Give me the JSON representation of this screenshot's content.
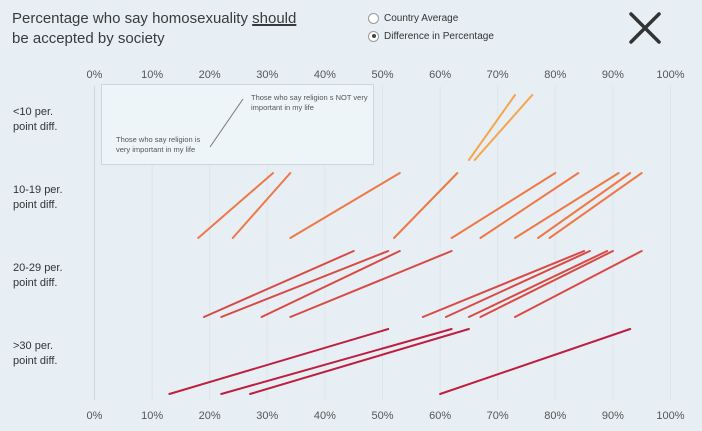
{
  "header": {
    "title_pre": "Percentage who say homosexuality ",
    "title_emph": "should",
    "title_post": " be accepted by society",
    "radio_options": [
      {
        "label": "Country Average",
        "selected": false
      },
      {
        "label": "Difference in Percentage",
        "selected": true
      }
    ],
    "close_icon": "close-x-icon"
  },
  "legend": {
    "low_label": "Those who say religion is very important in my life",
    "high_label": "Those who say religion s NOT very important in my life"
  },
  "chart_data": {
    "type": "slope-segments",
    "xlim": [
      0,
      100
    ],
    "x_ticks": [
      "0%",
      "10%",
      "20%",
      "30%",
      "40%",
      "50%",
      "60%",
      "70%",
      "80%",
      "90%",
      "100%"
    ],
    "grid": true,
    "rows": [
      {
        "label": "<10 per. point diff.",
        "color": "#f5a54b",
        "segments": [
          [
            65,
            73
          ],
          [
            66,
            76
          ]
        ]
      },
      {
        "label": "10-19 per. point diff.",
        "color": "#ee7846",
        "segments": [
          [
            18,
            31
          ],
          [
            24,
            34
          ],
          [
            34,
            53
          ],
          [
            52,
            63
          ],
          [
            62,
            80
          ],
          [
            67,
            84
          ],
          [
            73,
            91
          ],
          [
            77,
            93
          ],
          [
            79,
            95
          ]
        ]
      },
      {
        "label": "20-29 per. point diff.",
        "color": "#d94a45",
        "segments": [
          [
            19,
            45
          ],
          [
            22,
            51
          ],
          [
            29,
            53
          ],
          [
            34,
            62
          ],
          [
            57,
            85
          ],
          [
            61,
            86
          ],
          [
            65,
            89
          ],
          [
            67,
            90
          ],
          [
            73,
            95
          ]
        ]
      },
      {
        "label": ">30 per. point diff.",
        "color": "#be1f40",
        "segments": [
          [
            13,
            51
          ],
          [
            22,
            62
          ],
          [
            27,
            65
          ],
          [
            60,
            93
          ]
        ]
      }
    ]
  }
}
